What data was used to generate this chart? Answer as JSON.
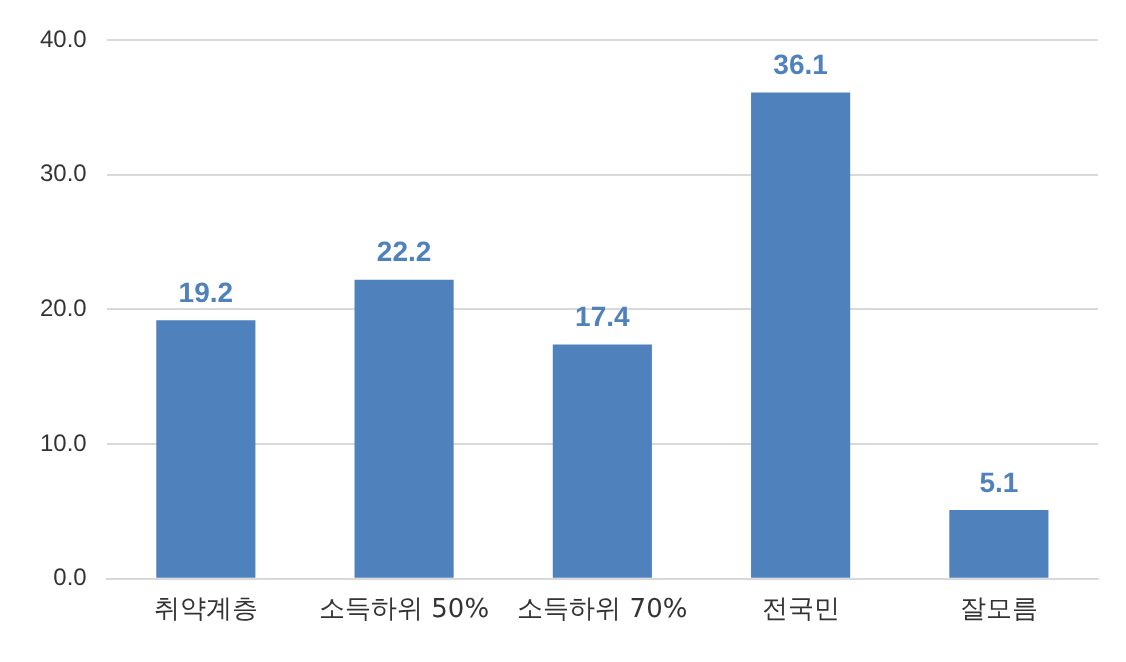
{
  "chart_data": {
    "type": "bar",
    "categories": [
      "취약계층",
      "소득하위 50%",
      "소득하위 70%",
      "전국민",
      "잘모름"
    ],
    "values": [
      19.2,
      22.2,
      17.4,
      36.1,
      5.1
    ],
    "color": "#4f81bd",
    "ylim": [
      0,
      40
    ],
    "yticks": [
      {
        "value": 0,
        "label": "0.0"
      },
      {
        "value": 10,
        "label": "10.0"
      },
      {
        "value": 20,
        "label": "20.0"
      },
      {
        "value": 30,
        "label": "30.0"
      },
      {
        "value": 40,
        "label": "40.0"
      }
    ],
    "grid": "y",
    "data_labels": true,
    "legend": false
  }
}
